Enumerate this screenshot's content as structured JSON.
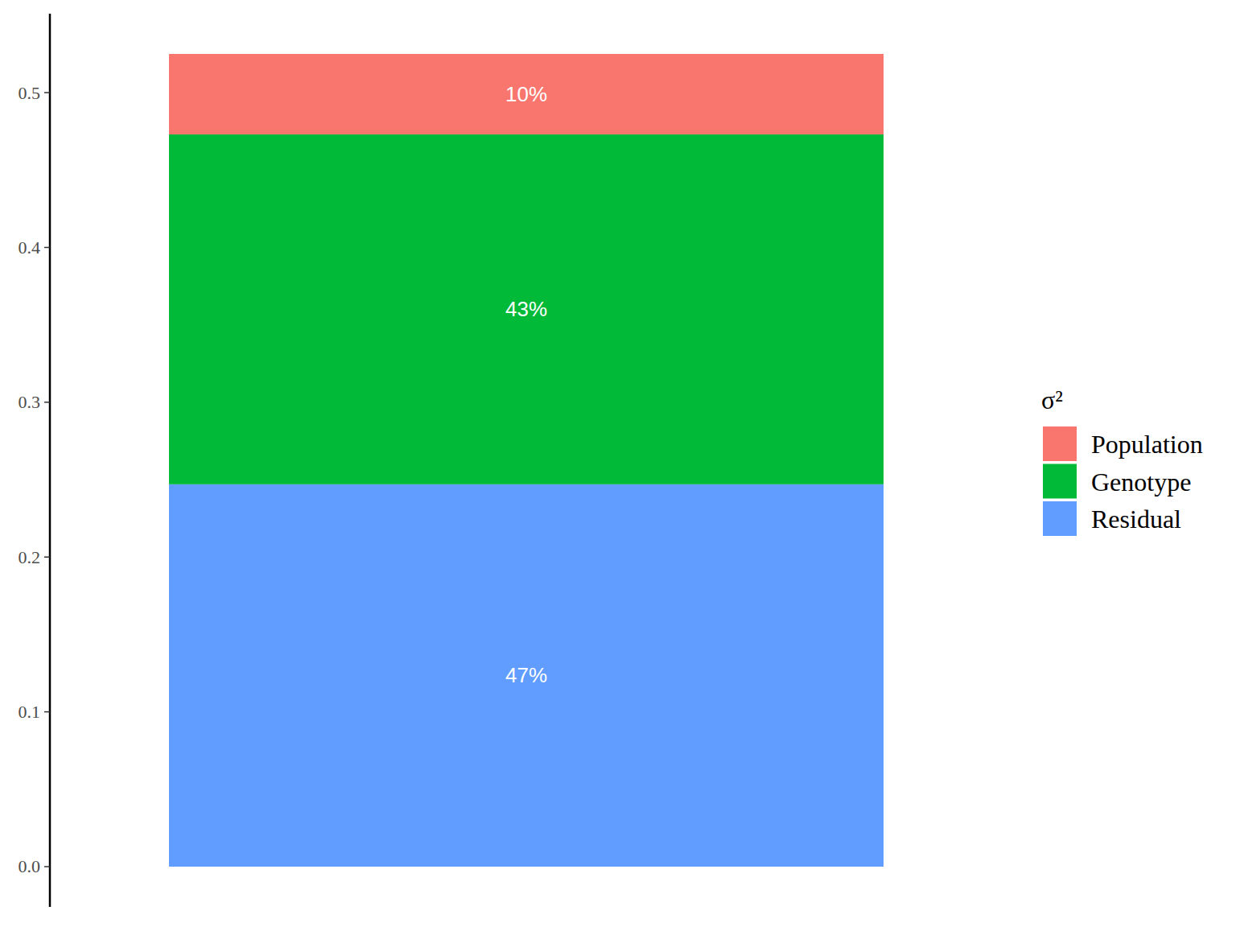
{
  "chart_data": {
    "type": "bar",
    "stacked": true,
    "data_labels": true,
    "tick_labels": "y",
    "grid": false,
    "legend": "right",
    "legend_title": "σ²",
    "categories": [
      null
    ],
    "series": [
      {
        "name": "Population",
        "color": "#F8766D",
        "values": [
          0.052
        ],
        "percent_labels": [
          "10%"
        ]
      },
      {
        "name": "Genotype",
        "color": "#00BA38",
        "values": [
          0.226
        ],
        "percent_labels": [
          "43%"
        ]
      },
      {
        "name": "Residual",
        "color": "#619CFF",
        "values": [
          0.247
        ],
        "percent_labels": [
          "47%"
        ]
      }
    ],
    "ylim": [
      -0.026,
      0.551
    ],
    "yticks": [
      {
        "value": 0,
        "label": "0.0"
      },
      0.1,
      0.2,
      0.3,
      0.4,
      0.5
    ]
  }
}
